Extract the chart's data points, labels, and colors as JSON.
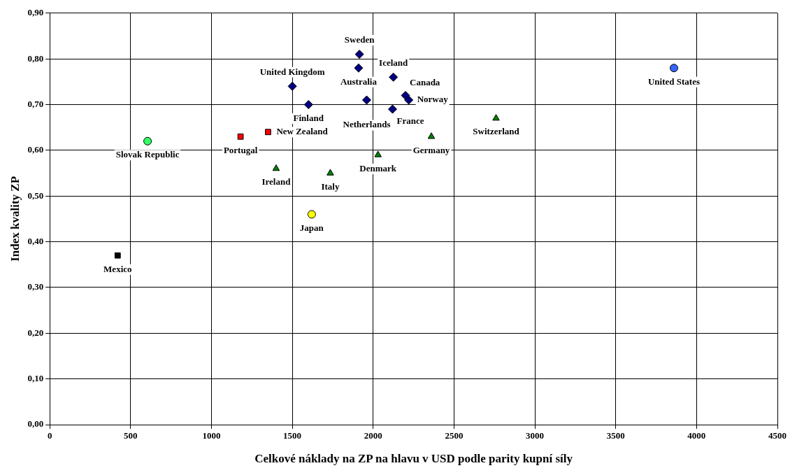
{
  "chart_data": {
    "type": "scatter",
    "xlabel": "Celkové náklady na ZP na hlavu v USD podle parity kupní síly",
    "ylabel": "Index kvality ZP",
    "xlim": [
      0,
      4500
    ],
    "xticks": [
      0,
      500,
      1000,
      1500,
      2000,
      2500,
      3000,
      3500,
      4000,
      4500
    ],
    "ylim": [
      0,
      0.9
    ],
    "yticks": [
      {
        "value": 0,
        "label": "0,00"
      },
      {
        "value": 0.1,
        "label": "0,10"
      },
      {
        "value": 0.2,
        "label": "0,20"
      },
      {
        "value": 0.3,
        "label": "0,30"
      },
      {
        "value": 0.4,
        "label": "0,40"
      },
      {
        "value": 0.5,
        "label": "0,50"
      },
      {
        "value": 0.6,
        "label": "0,60"
      },
      {
        "value": 0.7,
        "label": "0,70"
      },
      {
        "value": 0.8,
        "label": "0,80"
      },
      {
        "value": 0.9,
        "label": "0,90"
      }
    ],
    "grid": true,
    "legend": false,
    "series": [
      {
        "marker": "diamond",
        "color": "#000080",
        "x": [
          1500,
          1600,
          1910,
          1915,
          1960,
          2125,
          2120,
          2200,
          2220
        ],
        "values": [
          0.74,
          0.7,
          0.78,
          0.81,
          0.71,
          0.76,
          0.69,
          0.72,
          0.71
        ]
      },
      {
        "marker": "triangle",
        "color": "#008000",
        "x": [
          1400,
          1735,
          2030,
          2360,
          2760
        ],
        "values": [
          0.56,
          0.55,
          0.59,
          0.63,
          0.67
        ]
      },
      {
        "marker": "square",
        "colors": [
          "#000000",
          "#ff0000",
          "#ff0000"
        ],
        "x": [
          420,
          1180,
          1350
        ],
        "values": [
          0.37,
          0.63,
          0.64
        ]
      },
      {
        "marker": "circle",
        "colors": [
          "#33ff66",
          "#3366ff",
          "#ffff00"
        ],
        "x": [
          605,
          3860,
          1620
        ],
        "values": [
          0.62,
          0.78,
          0.46
        ]
      }
    ],
    "annotations": [
      {
        "text": "United Kingdom",
        "x": 1500,
        "y": 0.74
      },
      {
        "text": "Finland",
        "x": 1600,
        "y": 0.7
      },
      {
        "text": "Australia",
        "x": 1910,
        "y": 0.78
      },
      {
        "text": "Sweden",
        "x": 1915,
        "y": 0.81
      },
      {
        "text": "Netherlands",
        "x": 1960,
        "y": 0.71
      },
      {
        "text": "Iceland",
        "x": 2125,
        "y": 0.76
      },
      {
        "text": "France",
        "x": 2120,
        "y": 0.69
      },
      {
        "text": "Canada",
        "x": 2200,
        "y": 0.72
      },
      {
        "text": "Norway",
        "x": 2220,
        "y": 0.71
      },
      {
        "text": "Ireland",
        "x": 1400,
        "y": 0.56
      },
      {
        "text": "Italy",
        "x": 1735,
        "y": 0.55
      },
      {
        "text": "Denmark",
        "x": 2030,
        "y": 0.59
      },
      {
        "text": "Germany",
        "x": 2360,
        "y": 0.63
      },
      {
        "text": "Switzerland",
        "x": 2760,
        "y": 0.67
      },
      {
        "text": "Mexico",
        "x": 420,
        "y": 0.37
      },
      {
        "text": "Portugal",
        "x": 1180,
        "y": 0.63
      },
      {
        "text": "New Zealand",
        "x": 1350,
        "y": 0.64
      },
      {
        "text": "Slovak Republic",
        "x": 605,
        "y": 0.62
      },
      {
        "text": "United States",
        "x": 3860,
        "y": 0.78
      },
      {
        "text": "Japan",
        "x": 1620,
        "y": 0.46
      }
    ]
  }
}
